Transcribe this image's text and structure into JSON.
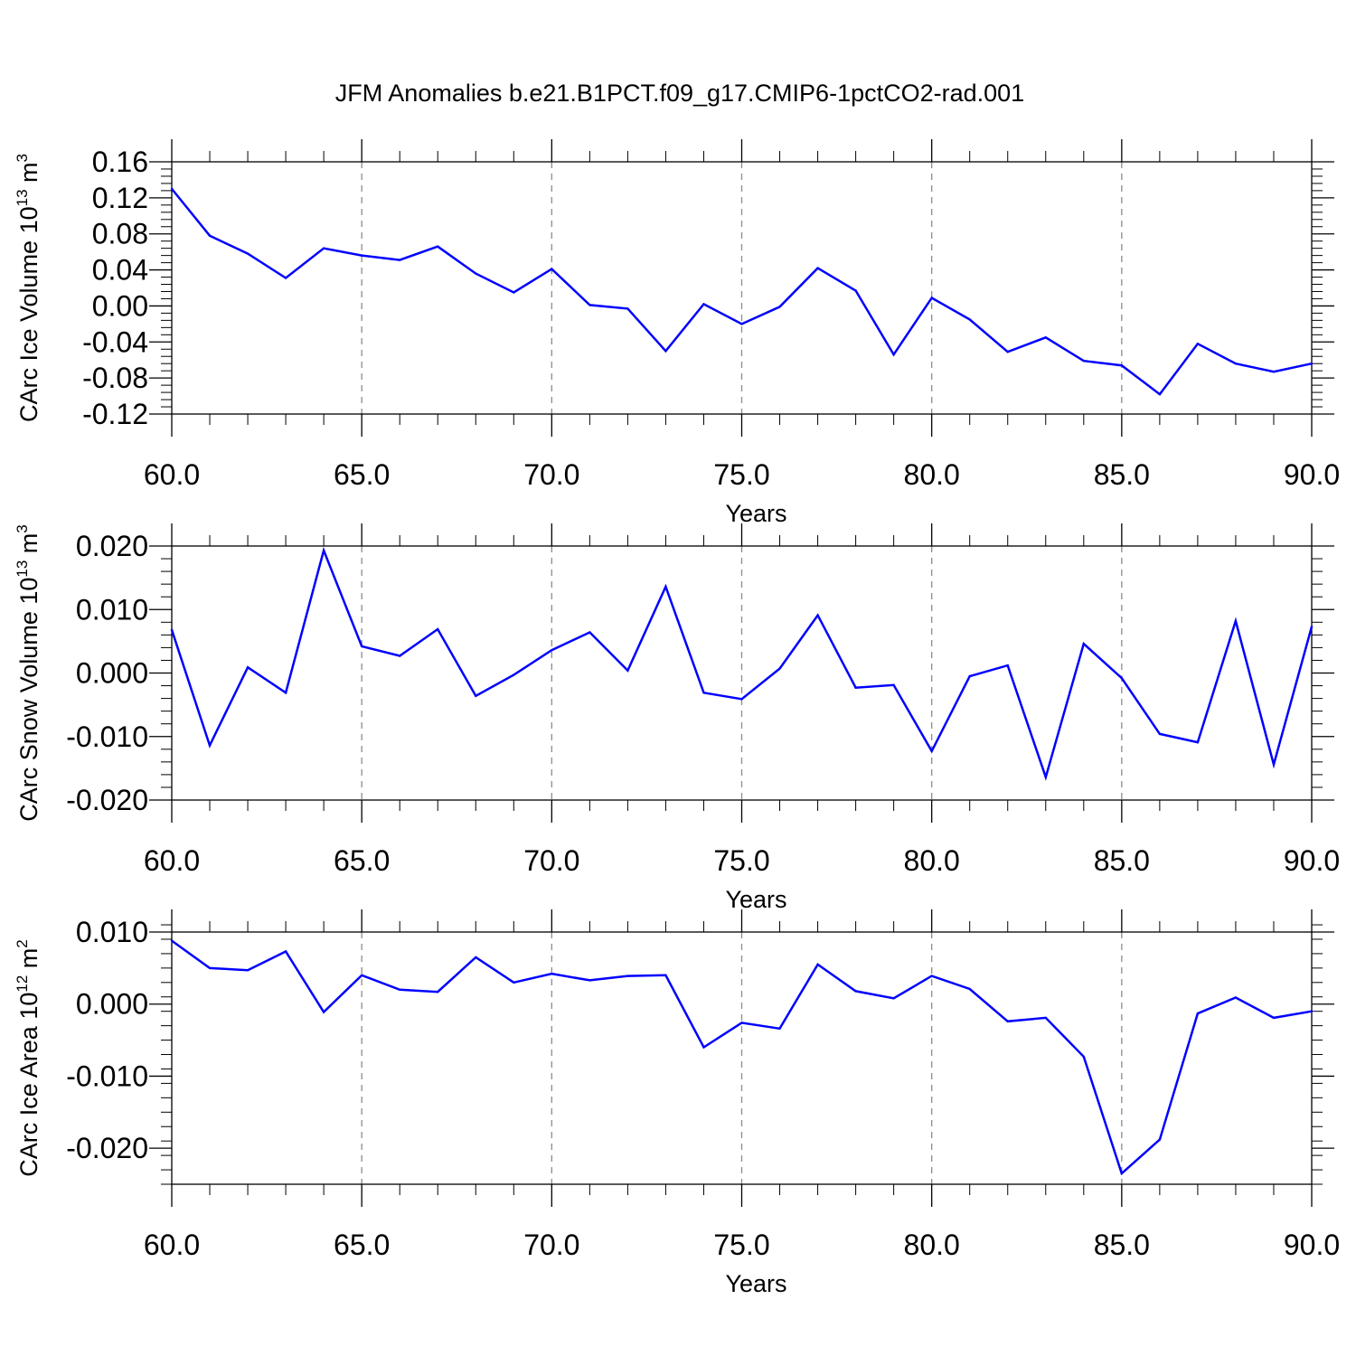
{
  "title": "JFM Anomalies b.e21.B1PCT.f09_g17.CMIP6-1pctCO2-rad.001",
  "colors": {
    "line": "#0000ff",
    "axis": "#000000",
    "grid": "#8c8c8c",
    "background": "#ffffff"
  },
  "chart_data": [
    {
      "type": "line",
      "ylabel_main": "CArc Ice Volume 10",
      "ylabel_exp": "13",
      "ylabel_unit": " m",
      "ylabel_unit_exp": "3",
      "xlabel": "Years",
      "xlim": [
        60,
        90
      ],
      "ylim": [
        -0.12,
        0.16
      ],
      "yticks": [
        -0.12,
        -0.08,
        -0.04,
        0.0,
        0.04,
        0.08,
        0.12,
        0.16
      ],
      "ytick_labels": [
        "-0.12",
        "-0.08",
        "-0.04",
        "0.00",
        "0.04",
        "0.08",
        "0.12",
        "0.16"
      ],
      "xticks": [
        60,
        65,
        70,
        75,
        80,
        85,
        90
      ],
      "xtick_labels": [
        "60.0",
        "65.0",
        "70.0",
        "75.0",
        "80.0",
        "85.0",
        "90.0"
      ],
      "series": [
        {
          "name": "CArc Ice Volume",
          "x": [
            60,
            61,
            62,
            63,
            64,
            65,
            66,
            67,
            68,
            69,
            70,
            71,
            72,
            73,
            74,
            75,
            76,
            77,
            78,
            79,
            80,
            81,
            82,
            83,
            84,
            85,
            86,
            87,
            88,
            89,
            90
          ],
          "values": [
            0.13,
            0.078,
            0.058,
            0.031,
            0.064,
            0.056,
            0.051,
            0.066,
            0.036,
            0.015,
            0.041,
            0.001,
            -0.003,
            -0.05,
            0.002,
            -0.02,
            -0.001,
            0.042,
            0.017,
            -0.054,
            0.009,
            -0.015,
            -0.051,
            -0.035,
            -0.061,
            -0.066,
            -0.098,
            -0.042,
            -0.064,
            -0.073,
            -0.064
          ]
        }
      ]
    },
    {
      "type": "line",
      "ylabel_main": "CArc Snow Volume 10",
      "ylabel_exp": "13",
      "ylabel_unit": " m",
      "ylabel_unit_exp": "3",
      "xlabel": "Years",
      "xlim": [
        60,
        90
      ],
      "ylim": [
        -0.02,
        0.02
      ],
      "yticks": [
        -0.02,
        -0.01,
        0.0,
        0.01,
        0.02
      ],
      "ytick_labels": [
        "-0.020",
        "-0.010",
        "0.000",
        "0.010",
        "0.020"
      ],
      "xticks": [
        60,
        65,
        70,
        75,
        80,
        85,
        90
      ],
      "xtick_labels": [
        "60.0",
        "65.0",
        "70.0",
        "75.0",
        "80.0",
        "85.0",
        "90.0"
      ],
      "series": [
        {
          "name": "CArc Snow Volume",
          "x": [
            60,
            61,
            62,
            63,
            64,
            65,
            66,
            67,
            68,
            69,
            70,
            71,
            72,
            73,
            74,
            75,
            76,
            77,
            78,
            79,
            80,
            81,
            82,
            83,
            84,
            85,
            86,
            87,
            88,
            89,
            90
          ],
          "values": [
            0.0068,
            -0.0114,
            0.0009,
            -0.0031,
            0.0193,
            0.0042,
            0.0027,
            0.0069,
            -0.0036,
            -0.0003,
            0.0036,
            0.0064,
            0.0004,
            0.0136,
            -0.0031,
            -0.0041,
            0.0007,
            0.0091,
            -0.0023,
            -0.0019,
            -0.0123,
            -0.0005,
            0.0012,
            -0.0164,
            0.0046,
            -0.0008,
            -0.0096,
            -0.0109,
            0.0082,
            -0.0144,
            0.0073
          ]
        }
      ]
    },
    {
      "type": "line",
      "ylabel_main": "CArc Ice Area 10",
      "ylabel_exp": "12",
      "ylabel_unit": " m",
      "ylabel_unit_exp": "2",
      "xlabel": "Years",
      "xlim": [
        60,
        90
      ],
      "ylim": [
        -0.025,
        0.01
      ],
      "yticks": [
        -0.02,
        -0.01,
        0.0,
        0.01
      ],
      "ytick_labels": [
        "-0.020",
        "-0.010",
        "0.000",
        "0.010"
      ],
      "xticks": [
        60,
        65,
        70,
        75,
        80,
        85,
        90
      ],
      "xtick_labels": [
        "60.0",
        "65.0",
        "70.0",
        "75.0",
        "80.0",
        "85.0",
        "90.0"
      ],
      "series": [
        {
          "name": "CArc Ice Area",
          "x": [
            60,
            61,
            62,
            63,
            64,
            65,
            66,
            67,
            68,
            69,
            70,
            71,
            72,
            73,
            74,
            75,
            76,
            77,
            78,
            79,
            80,
            81,
            82,
            83,
            84,
            85,
            86,
            87,
            88,
            89,
            90
          ],
          "values": [
            0.0088,
            0.005,
            0.0047,
            0.0073,
            -0.0011,
            0.004,
            0.002,
            0.0017,
            0.0065,
            0.003,
            0.0042,
            0.0033,
            0.0039,
            0.004,
            -0.006,
            -0.0026,
            -0.0034,
            0.0055,
            0.0018,
            0.0008,
            0.0039,
            0.0021,
            -0.0024,
            -0.0019,
            -0.0073,
            -0.0235,
            -0.0188,
            -0.0013,
            0.0009,
            -0.0019,
            -0.001
          ]
        }
      ]
    }
  ]
}
